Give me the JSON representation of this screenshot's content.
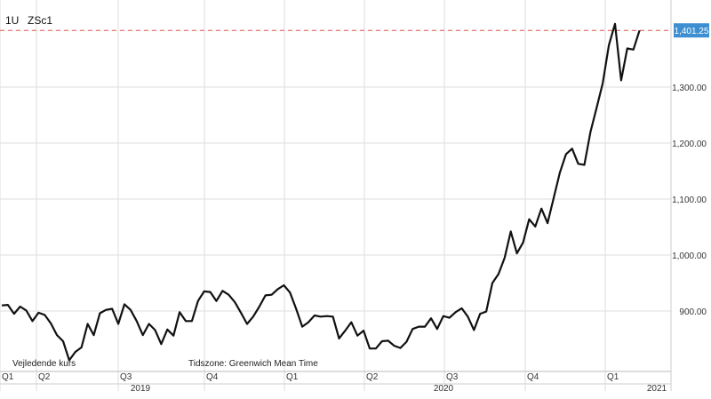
{
  "header": {
    "symbol_prefix": "1U",
    "symbol": "ZSc1"
  },
  "footer": {
    "price_type": "Vejledende kurs",
    "timezone": "Tidszone: Greenwich Mean Time"
  },
  "colors": {
    "line": "#111111",
    "grid": "#dddddd",
    "ref_line": "#e05040",
    "last_badge_bg": "#3d8fd1",
    "last_badge_text": "#ffffff"
  },
  "chart_data": {
    "type": "line",
    "title": "",
    "xlabel": "",
    "ylabel": "",
    "last_value": 1401.25,
    "last_value_label": "1,401.25",
    "ylim": [
      800,
      1420
    ],
    "yticks": [
      900,
      1000,
      1100,
      1200,
      1300
    ],
    "ytick_labels": [
      "900.00",
      "1,000.00",
      "1,100.00",
      "1,200.00",
      "1,300.00"
    ],
    "grid": true,
    "x_quarter_labels": [
      "Q1",
      "Q2",
      "Q3",
      "Q4",
      "Q1",
      "Q2",
      "Q3",
      "Q4",
      "Q1"
    ],
    "x_year_labels": [
      "2019",
      "2020",
      "2021"
    ],
    "series": [
      {
        "values": [
          910,
          911,
          895,
          908,
          901,
          882,
          897,
          893,
          878,
          857,
          846,
          812,
          827,
          835,
          877,
          857,
          896,
          902,
          904,
          877,
          912,
          902,
          882,
          857,
          877,
          866,
          841,
          867,
          856,
          898,
          882,
          882,
          918,
          935,
          934,
          918,
          936,
          929,
          916,
          897,
          877,
          890,
          908,
          928,
          929,
          939,
          946,
          933,
          904,
          872,
          880,
          892,
          890,
          891,
          890,
          851,
          865,
          880,
          856,
          865,
          833,
          833,
          846,
          847,
          838,
          834,
          845,
          868,
          872,
          872,
          887,
          868,
          891,
          888,
          898,
          905,
          890,
          866,
          895,
          899,
          950,
          966,
          995,
          1042,
          1003,
          1022,
          1064,
          1051,
          1083,
          1057,
          1102,
          1147,
          1180,
          1190,
          1163,
          1161,
          1220,
          1263,
          1307,
          1375,
          1413,
          1312,
          1369,
          1367,
          1401.25
        ]
      }
    ]
  }
}
